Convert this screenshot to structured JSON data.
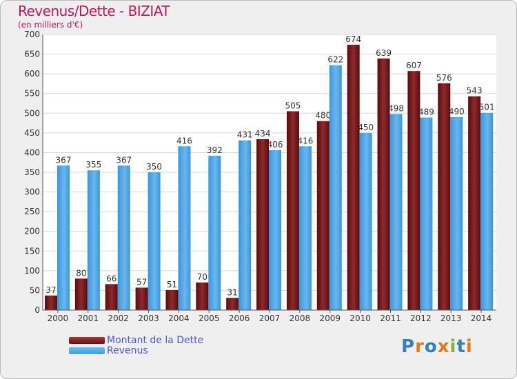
{
  "header": {
    "title": "Revenus/Dette - BIZIAT",
    "subtitle": "(en milliers d'€)"
  },
  "legend": {
    "items": [
      {
        "label": "Montant de la Dette",
        "color": "#6e0f13"
      },
      {
        "label": "Revenus",
        "color": "#3d9ee5"
      }
    ]
  },
  "logo": {
    "text": "Proxiti",
    "letters": [
      "P",
      "r",
      "o",
      "x",
      "i",
      "t",
      "i"
    ],
    "colors": [
      "#2f7fc1",
      "#e07b1a",
      "#2f7fc1",
      "#e07b1a",
      "#7cb342",
      "#2f7fc1",
      "#e07b1a"
    ]
  },
  "chart_data": {
    "type": "bar",
    "categories": [
      "2000",
      "2001",
      "2002",
      "2003",
      "2004",
      "2005",
      "2006",
      "2007",
      "2008",
      "2009",
      "2010",
      "2011",
      "2012",
      "2013",
      "2014"
    ],
    "series": [
      {
        "name": "Montant de la Dette",
        "color": "#6e0f13",
        "values": [
          37,
          80,
          66,
          57,
          51,
          70,
          31,
          434,
          505,
          480,
          674,
          639,
          607,
          576,
          543
        ]
      },
      {
        "name": "Revenus",
        "color": "#3d9ee5",
        "values": [
          367,
          355,
          367,
          350,
          416,
          392,
          431,
          406,
          416,
          622,
          450,
          498,
          489,
          490,
          501
        ]
      }
    ],
    "ylim": [
      0,
      700
    ],
    "yticks": [
      0,
      50,
      100,
      150,
      200,
      250,
      300,
      350,
      400,
      450,
      500,
      550,
      600,
      650,
      700
    ],
    "grid": true,
    "legend_position": "bottom-left"
  }
}
